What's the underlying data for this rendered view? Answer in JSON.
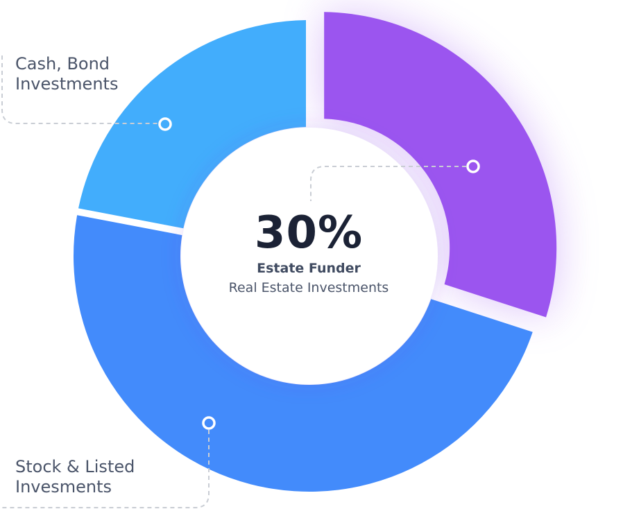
{
  "chart_data": {
    "type": "pie",
    "variant": "donut",
    "center": {
      "value_text": "30%",
      "title": "Estate Funder",
      "subtitle": "Real Estate Investments"
    },
    "slices": [
      {
        "label_lines": [
          "Real Estate Investments"
        ],
        "value": 30,
        "color": "#9b55ef",
        "exploded": true,
        "callout": "center"
      },
      {
        "label_lines": [
          "Stock & Listed",
          "Invesments"
        ],
        "value": 48,
        "color": "#438bfb",
        "exploded": false,
        "callout": "bottom-left"
      },
      {
        "label_lines": [
          "Cash, Bond",
          "Investments"
        ],
        "value": 22,
        "color": "#42adfc",
        "exploded": false,
        "callout": "top-left"
      }
    ],
    "legend": "none",
    "grid": false
  },
  "colors": {
    "connector": "#c9cdd4",
    "center_fill": "#ffffff",
    "text_dark": "#1b2235",
    "text_label": "#4a5469"
  }
}
